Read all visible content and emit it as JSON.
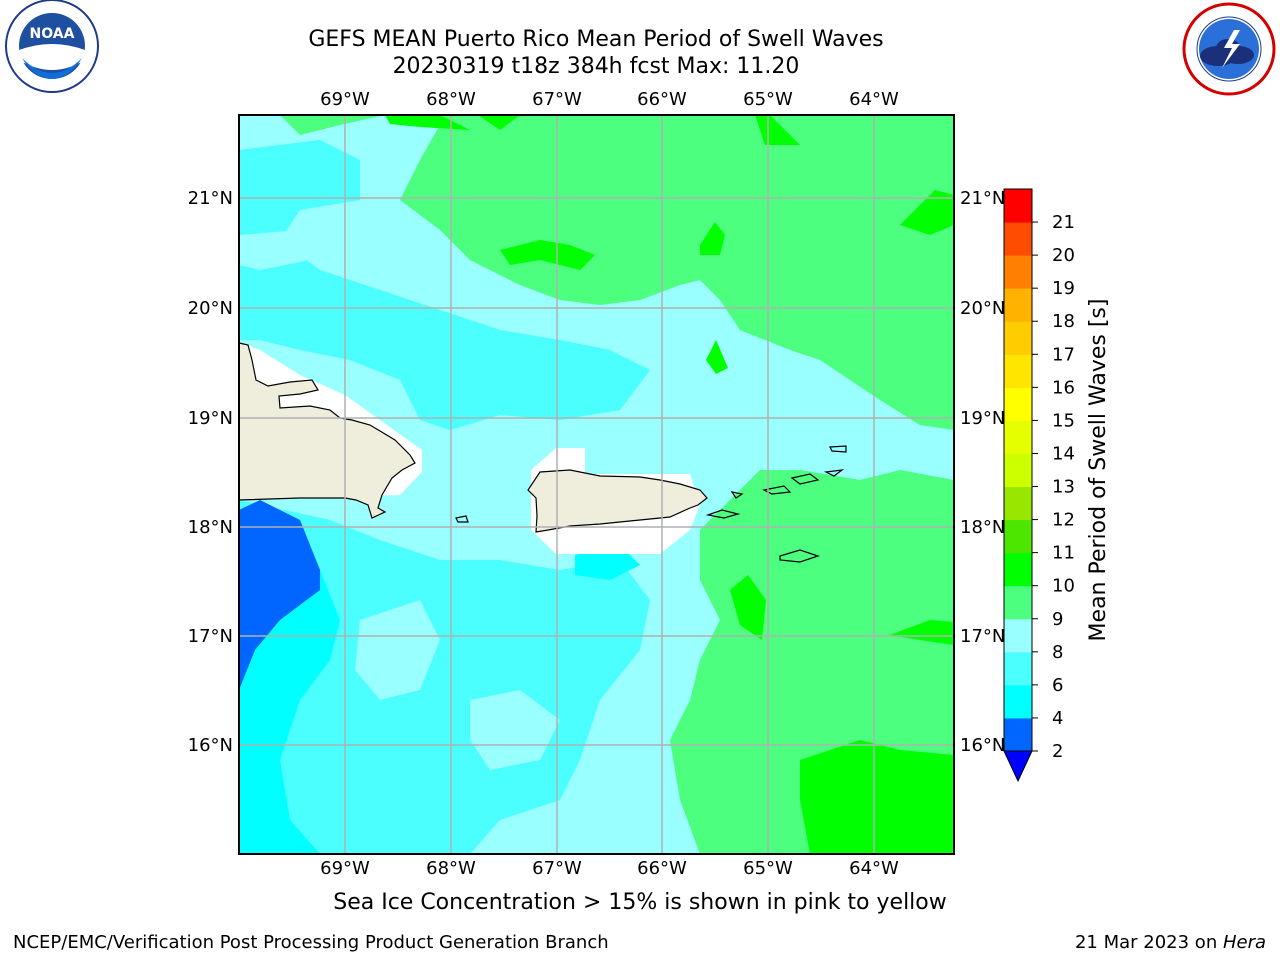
{
  "title_line1": "GEFS MEAN Puerto Rico Mean Period of Swell Waves",
  "title_line2": "20230319 t18z 384h fcst   Max: 11.20",
  "note": "Sea Ice Concentration > 15% is shown in pink to yellow",
  "footer_left": "NCEP/EMC/Verification Post Processing Product Generation Branch",
  "footer_right_date": "21 Mar 2023 on ",
  "footer_right_host": "Hera",
  "logos": {
    "left_logo_text": "NOAA",
    "left_logo_ring_text": "NATIONAL OCEANIC AND ATMOSPHERIC ADMINISTRATION · U.S. DEPARTMENT OF COMMERCE",
    "right_logo_ring_text": "NATIONAL WEATHER SERVICE"
  },
  "map": {
    "lon_labels": [
      "69°W",
      "68°W",
      "67°W",
      "66°W",
      "65°W",
      "64°W"
    ],
    "lat_labels": [
      "21°N",
      "20°N",
      "19°N",
      "18°N",
      "17°N",
      "16°N"
    ],
    "land_color": "#efeddc",
    "colors": {
      "c24": "#0066ff",
      "c46": "#00ffff",
      "c68": "#4cffff",
      "c89": "#99ffff",
      "c910": "#4cff7f",
      "c1011": "#00ff00"
    }
  },
  "colorbar": {
    "label": "Mean Period of Swell Waves [s]",
    "ticks": [
      "2",
      "4",
      "6",
      "8",
      "9",
      "10",
      "11",
      "12",
      "13",
      "14",
      "15",
      "16",
      "17",
      "18",
      "19",
      "20",
      "21"
    ],
    "colors": [
      "#0066ff",
      "#00ffff",
      "#4cffff",
      "#99ffff",
      "#4cff7f",
      "#00ff00",
      "#4ce600",
      "#99e600",
      "#ccff00",
      "#e6ff00",
      "#ffff00",
      "#ffe500",
      "#ffcc00",
      "#ffb300",
      "#ff8000",
      "#ff4c00",
      "#ff0000"
    ],
    "under_color": "#0000ff"
  }
}
